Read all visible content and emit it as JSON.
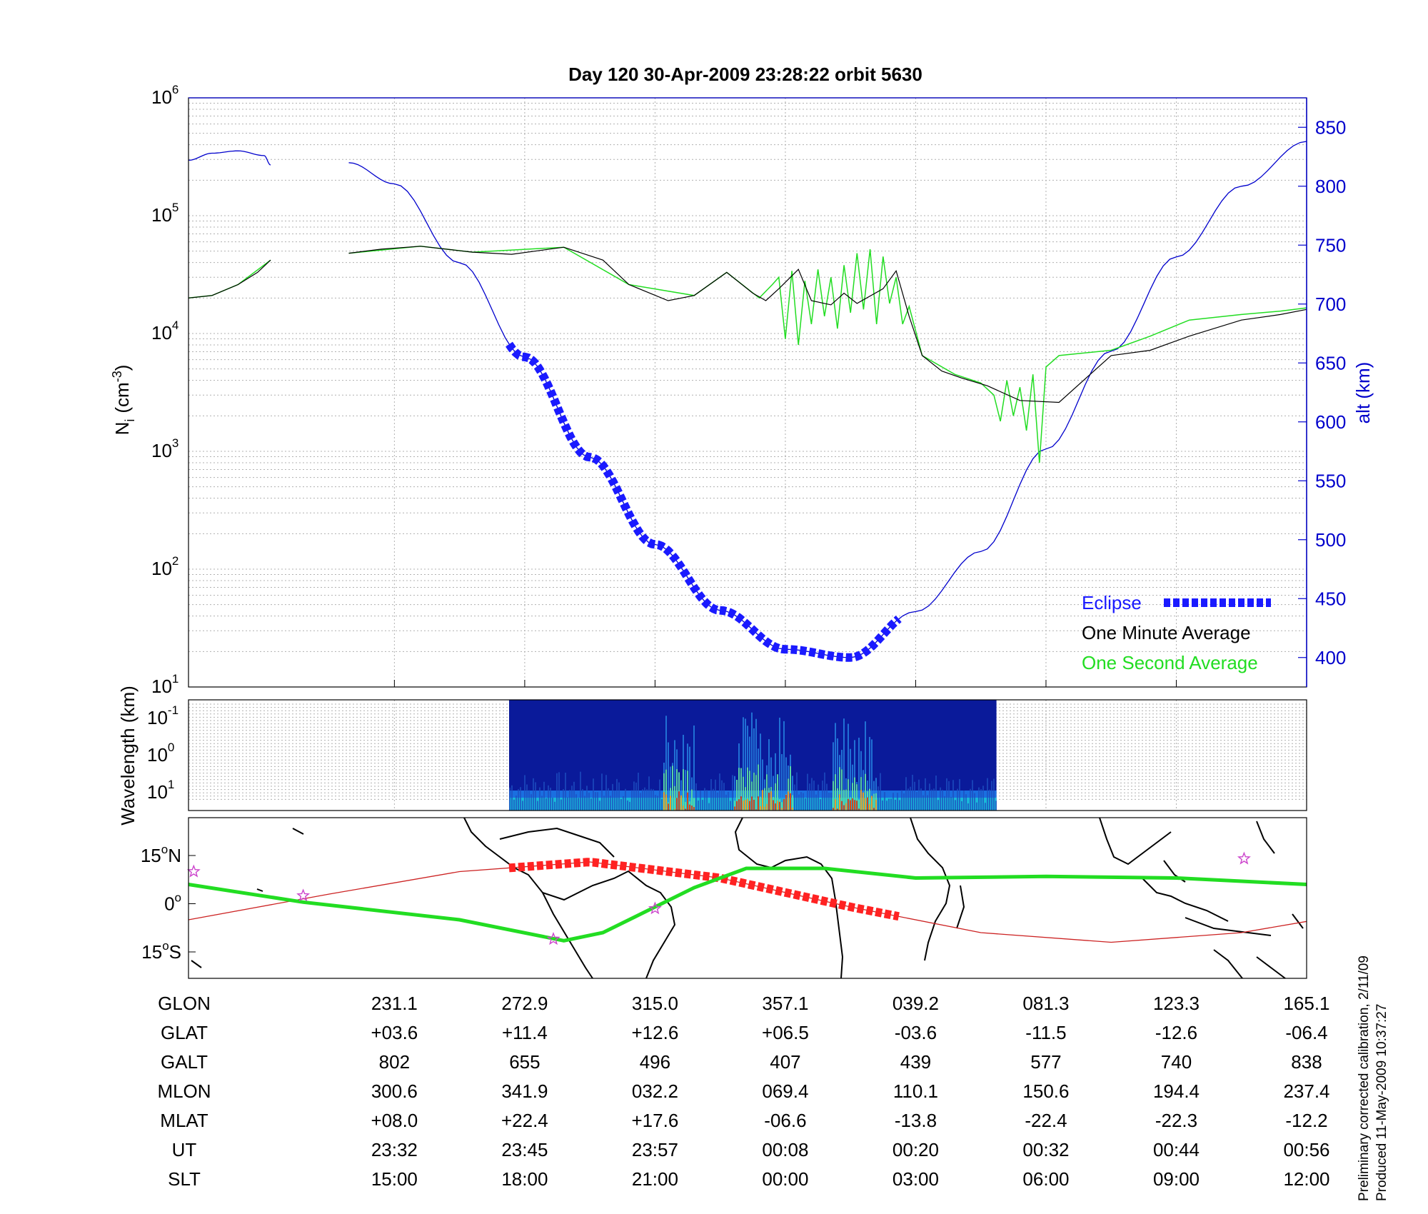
{
  "title": "Day 120  30-Apr-2009 23:28:22   orbit 5630",
  "footer": {
    "line1": "Preliminary corrected calibration, 2/11/09",
    "line2": "Produced 11-May-2009 10:37:27"
  },
  "colors": {
    "one_second": "#22dd22",
    "one_minute": "#000000",
    "altitude": "#0000cc",
    "eclipse": "#1a1aff",
    "ground_track": "#cc2222",
    "eclipse_track": "#ff2222",
    "mag_track": "#22dd22",
    "star_marker": "#cc44cc"
  },
  "chart_data": [
    {
      "type": "line",
      "title": "Day 120  30-Apr-2009 23:28:22   orbit 5630",
      "ylabel_left": "N",
      "ylabel_left_sub": "i",
      "ylabel_left_unit": "(cm",
      "ylabel_left_unit_exp": "-3",
      "ylabel_left_unit_close": ")",
      "ylabel_right": "alt (km)",
      "y_left_scale": "log",
      "y_left_ticks": [
        {
          "base": "10",
          "exp": "1"
        },
        {
          "base": "10",
          "exp": "2"
        },
        {
          "base": "10",
          "exp": "3"
        },
        {
          "base": "10",
          "exp": "4"
        },
        {
          "base": "10",
          "exp": "5"
        },
        {
          "base": "10",
          "exp": "6"
        }
      ],
      "ylim_left": [
        10,
        1000000
      ],
      "ylim_right": [
        375,
        875
      ],
      "y_right_ticks": [
        "400",
        "450",
        "500",
        "550",
        "600",
        "650",
        "700",
        "750",
        "800",
        "850"
      ],
      "xlim": [
        -1.58,
        7
      ],
      "grid": true,
      "legend_position": "bottom-right",
      "legend": [
        "Eclipse",
        "One Minute Average",
        "One Second Average"
      ],
      "altitude_segments": [
        {
          "x": [
            -1.58,
            -1.4,
            -1.2,
            -1.0,
            -0.95
          ],
          "y": [
            822,
            828,
            830,
            826,
            818
          ]
        },
        {
          "x": [
            -0.35,
            0.0,
            0.5,
            1.0,
            1.5,
            2.0,
            2.5,
            3.0,
            3.5,
            4.0,
            4.5,
            5.0,
            5.5,
            6.0,
            6.5,
            7.0
          ],
          "y": [
            820,
            802,
            735,
            655,
            570,
            496,
            440,
            407,
            400,
            439,
            490,
            577,
            660,
            740,
            800,
            838
          ]
        }
      ],
      "eclipse_x": [
        0.88,
        3.87
      ],
      "one_minute_x": [
        -1.58,
        -1.4,
        -1.2,
        -1.05,
        -0.95,
        -0.35,
        -0.1,
        0.2,
        0.6,
        0.9,
        1.3,
        1.6,
        1.8,
        2.1,
        2.3,
        2.55,
        2.75,
        2.85,
        2.95,
        3.1,
        3.2,
        3.35,
        3.45,
        3.55,
        3.75,
        3.85,
        3.95,
        4.05,
        4.2,
        4.35,
        4.55,
        4.8,
        5.1,
        5.5,
        5.8,
        6.1,
        6.5,
        6.8,
        7.0
      ],
      "one_minute_y": [
        20000,
        21000,
        26000,
        33000,
        42000,
        48000,
        52000,
        55000,
        49000,
        47000,
        54000,
        42000,
        26000,
        19000,
        21000,
        33000,
        22000,
        19000,
        24000,
        35000,
        19000,
        17500,
        22000,
        18000,
        24000,
        34000,
        14000,
        6500,
        4800,
        4200,
        3600,
        2700,
        2600,
        6500,
        7200,
        9500,
        13000,
        14500,
        16000
      ],
      "one_second_x": [
        -1.58,
        -1.4,
        -1.2,
        -0.95,
        -0.35,
        0.2,
        0.6,
        1.3,
        1.8,
        2.3,
        2.55,
        2.8,
        2.9,
        2.95,
        3.0,
        3.05,
        3.1,
        3.15,
        3.2,
        3.25,
        3.3,
        3.35,
        3.4,
        3.45,
        3.5,
        3.55,
        3.6,
        3.65,
        3.7,
        3.75,
        3.8,
        3.85,
        3.9,
        3.95,
        4.05,
        4.3,
        4.5,
        4.6,
        4.65,
        4.7,
        4.75,
        4.8,
        4.85,
        4.9,
        4.95,
        5.0,
        5.1,
        5.5,
        5.8,
        6.1,
        6.5,
        6.8,
        7.0
      ],
      "one_second_y": [
        20000,
        21000,
        26000,
        42000,
        48000,
        55000,
        49000,
        54000,
        26000,
        21000,
        33000,
        20000,
        26000,
        30000,
        9000,
        34000,
        8000,
        28000,
        12000,
        35000,
        14000,
        30000,
        11000,
        38000,
        15000,
        48000,
        16000,
        52000,
        12000,
        45000,
        18000,
        30000,
        12000,
        17000,
        6500,
        4500,
        3800,
        3000,
        1800,
        4000,
        2000,
        3500,
        1500,
        4500,
        800,
        5200,
        6500,
        7200,
        9500,
        13000,
        14500,
        15500,
        16500
      ]
    },
    {
      "type": "heatmap",
      "ylabel": "Wavelength (km)",
      "y_ticks": [
        {
          "base": "10",
          "exp": "-1"
        },
        {
          "base": "10",
          "exp": "0"
        },
        {
          "base": "10",
          "exp": "1"
        }
      ],
      "data_x_range": [
        0.88,
        4.62
      ],
      "intense_bands": [
        [
          2.05,
          2.3
        ],
        [
          2.6,
          3.05
        ],
        [
          3.35,
          3.7
        ]
      ]
    },
    {
      "type": "map",
      "y_ticks": [
        "15",
        "0",
        "15"
      ],
      "y_tick_suffix": [
        "N",
        "",
        "S"
      ],
      "ground_track_x": [
        -1.58,
        -0.5,
        0.5,
        1.5,
        2.5,
        3.5,
        4.5,
        5.5,
        6.5,
        7.0
      ],
      "ground_track_lat": [
        -5,
        3,
        10,
        13,
        8,
        -1,
        -9,
        -12,
        -9,
        -5.5
      ],
      "eclipse_track_x": [
        0.88,
        3.87
      ],
      "mag_track_x": [
        -1.58,
        -0.7,
        0.5,
        1.3,
        1.6,
        1.9,
        2.3,
        2.7,
        3.3,
        4.0,
        5.0,
        6.0,
        7.0
      ],
      "mag_track_lat": [
        6,
        0.5,
        -5,
        -11.5,
        -9,
        -3,
        5,
        11,
        11,
        8,
        8.5,
        8,
        6
      ],
      "star_markers": [
        {
          "x": -1.54,
          "lat": 10
        },
        {
          "x": -0.7,
          "lat": 2.5
        },
        {
          "x": 1.22,
          "lat": -11
        },
        {
          "x": 2.0,
          "lat": -1.5
        },
        {
          "x": 6.52,
          "lat": 14
        }
      ]
    }
  ],
  "table": {
    "rows": [
      {
        "label": "GLON",
        "values": [
          "231.1",
          "272.9",
          "315.0",
          "357.1",
          "039.2",
          "081.3",
          "123.3",
          "165.1"
        ]
      },
      {
        "label": "GLAT",
        "values": [
          "+03.6",
          "+11.4",
          "+12.6",
          "+06.5",
          "-03.6",
          "-11.5",
          "-12.6",
          "-06.4"
        ]
      },
      {
        "label": "GALT",
        "values": [
          "802",
          "655",
          "496",
          "407",
          "439",
          "577",
          "740",
          "838"
        ]
      },
      {
        "label": "MLON",
        "values": [
          "300.6",
          "341.9",
          "032.2",
          "069.4",
          "110.1",
          "150.6",
          "194.4",
          "237.4"
        ]
      },
      {
        "label": "MLAT",
        "values": [
          "+08.0",
          "+22.4",
          "+17.6",
          "-06.6",
          "-13.8",
          "-22.4",
          "-22.3",
          "-12.2"
        ]
      },
      {
        "label": "UT",
        "values": [
          "23:32",
          "23:45",
          "23:57",
          "00:08",
          "00:20",
          "00:32",
          "00:44",
          "00:56"
        ]
      },
      {
        "label": "SLT",
        "values": [
          "15:00",
          "18:00",
          "21:00",
          "00:00",
          "03:00",
          "06:00",
          "09:00",
          "12:00"
        ]
      }
    ]
  }
}
